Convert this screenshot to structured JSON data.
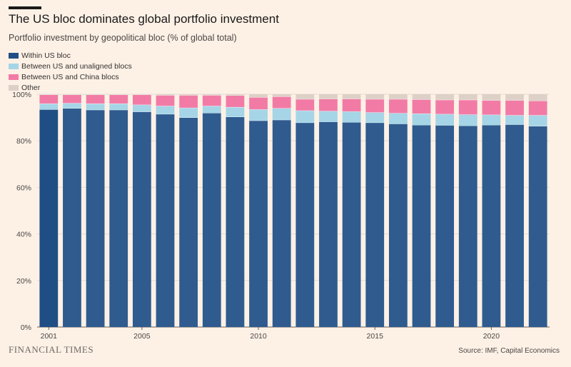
{
  "title": "The US bloc dominates global portfolio investment",
  "subtitle": "Portfolio investment by geopolitical bloc (% of global total)",
  "source": "Source: IMF, Capital Economics",
  "brand": "FINANCIAL TIMES",
  "colors": {
    "background": "#fdf1e6",
    "within_us": "#2f5b8f",
    "within_us_highlight": "#1f4e85",
    "between_us_unaligned": "#a5d5e6",
    "between_us_china": "#f27ba6",
    "other": "#ddd0c6"
  },
  "chart_data": {
    "type": "bar",
    "stacked": true,
    "title": "The US bloc dominates global portfolio investment",
    "subtitle": "Portfolio investment by geopolitical bloc (% of global total)",
    "categories": [
      "2001",
      "2002",
      "2003",
      "2004",
      "2005",
      "2006",
      "2007",
      "2008",
      "2009",
      "2010",
      "2011",
      "2012",
      "2013",
      "2014",
      "2015",
      "2016",
      "2017",
      "2018",
      "2019",
      "2020",
      "2021",
      "2022"
    ],
    "x_tick_labels": [
      "2001",
      "2005",
      "2010",
      "2015",
      "2020"
    ],
    "y_tick_labels": [
      "0%",
      "20%",
      "40%",
      "60%",
      "80%",
      "100%"
    ],
    "ylim": [
      0,
      100
    ],
    "grid": true,
    "legend_position": "top-left",
    "series": [
      {
        "name": "Within US bloc",
        "values": [
          93.5,
          94,
          93.3,
          93.3,
          92.5,
          91.5,
          90,
          92,
          90.3,
          88.7,
          89,
          87.8,
          88.2,
          88,
          87.8,
          87.3,
          86.8,
          86.7,
          86.5,
          86.8,
          87,
          86.3
        ]
      },
      {
        "name": "Between US and unaligned blocs",
        "values": [
          2.5,
          2.2,
          2.7,
          2.7,
          3,
          3.5,
          4.2,
          3,
          4.2,
          4.8,
          5,
          5.2,
          4.6,
          4.6,
          4.4,
          4.6,
          4.9,
          4.8,
          4.8,
          4.4,
          4,
          4.7
        ]
      },
      {
        "name": "Between US and China blocs",
        "values": [
          3.8,
          3.6,
          3.8,
          3.8,
          4.3,
          4.6,
          5.4,
          4.6,
          5,
          5.2,
          5,
          4.9,
          5.2,
          5.4,
          5.7,
          6,
          6.1,
          6.1,
          6.3,
          6.2,
          6.4,
          6.2
        ]
      },
      {
        "name": "Other",
        "values": [
          0.2,
          0.2,
          0.2,
          0.2,
          0.2,
          0.4,
          0.4,
          0.4,
          0.5,
          1.3,
          1,
          2.1,
          2,
          2,
          2.1,
          2.1,
          2.2,
          2.4,
          2.4,
          2.6,
          2.6,
          2.8
        ]
      }
    ]
  }
}
